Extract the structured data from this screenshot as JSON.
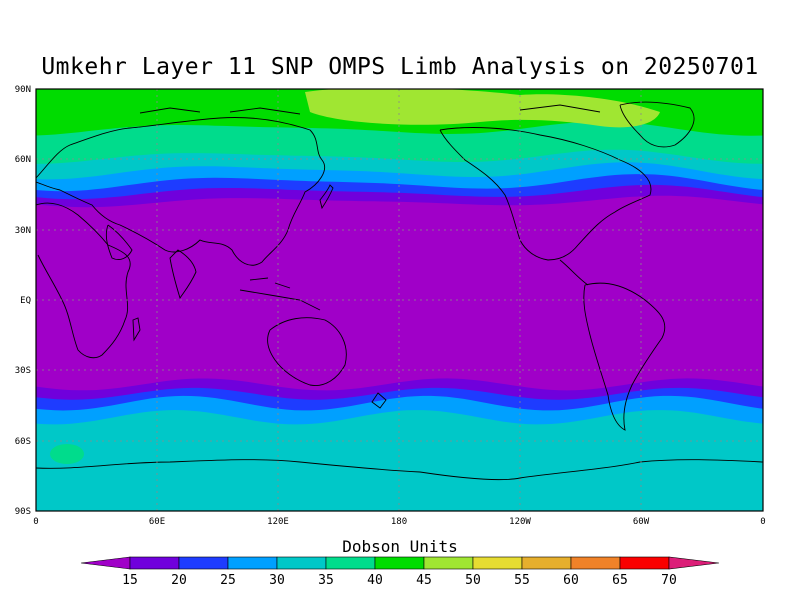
{
  "title": "Umkehr Layer 11 SNP OMPS Limb Analysis on 20250701",
  "colorbar": {
    "title": "Dobson Units",
    "levels": [
      "15",
      "20",
      "25",
      "30",
      "35",
      "40",
      "45",
      "50",
      "55",
      "60",
      "65",
      "70"
    ],
    "colors": [
      "#a000c8",
      "#7000dc",
      "#1e3cff",
      "#00a0ff",
      "#00c8c8",
      "#00dc8c",
      "#00dc00",
      "#a0e632",
      "#e6dc32",
      "#e6af2d",
      "#f08228",
      "#fa0000",
      "#dc1e78"
    ]
  },
  "axes": {
    "x_ticks": [
      "0",
      "60E",
      "120E",
      "180",
      "120W",
      "60W",
      "0"
    ],
    "y_ticks": [
      "90N",
      "60N",
      "30N",
      "EQ",
      "30S",
      "60S",
      "90S"
    ]
  },
  "chart_data": {
    "type": "heatmap",
    "title": "Umkehr Layer 11 SNP OMPS Limb Analysis on 20250701",
    "units": "Dobson Units",
    "xlim": [
      0,
      360
    ],
    "ylim": [
      -90,
      90
    ],
    "contour_levels": [
      15,
      20,
      25,
      30,
      35,
      40,
      45,
      50,
      55,
      60,
      65,
      70
    ],
    "zonal_profile_approx": [
      {
        "lat": 90,
        "value": 45
      },
      {
        "lat": 75,
        "value": 42
      },
      {
        "lat": 60,
        "value": 32
      },
      {
        "lat": 50,
        "value": 24
      },
      {
        "lat": 40,
        "value": 15
      },
      {
        "lat": 0,
        "value": 12
      },
      {
        "lat": -30,
        "value": 13
      },
      {
        "lat": -40,
        "value": 19
      },
      {
        "lat": -50,
        "value": 30
      },
      {
        "lat": -60,
        "value": 35
      },
      {
        "lat": -90,
        "value": 35
      }
    ]
  }
}
